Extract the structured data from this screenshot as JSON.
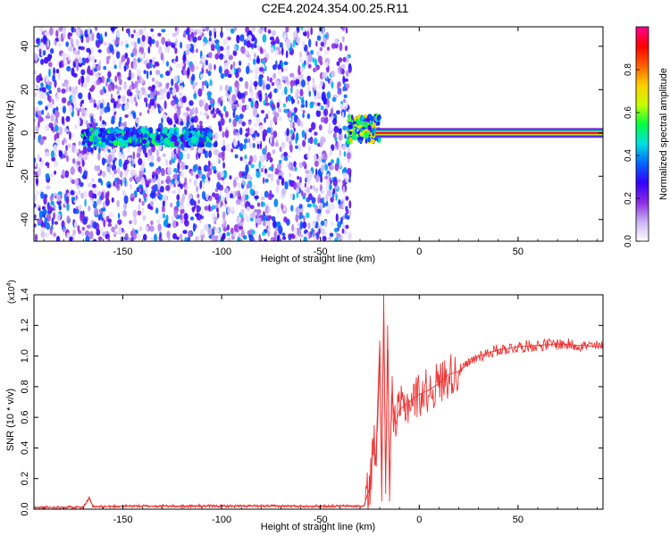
{
  "title": "C2E4.2024.354.00.25.R11",
  "chart_data": [
    {
      "type": "heatmap",
      "xlabel": "Height of straight line (km)",
      "ylabel": "Frequency (Hz)",
      "xlim": [
        -195,
        93
      ],
      "ylim": [
        -50,
        49
      ],
      "xticks": [
        "-150",
        "-100",
        "-50",
        "0",
        "50"
      ],
      "yticks": [
        "-40",
        "-20",
        "0",
        "20",
        "40"
      ],
      "noise_region_x": [
        -195,
        -35
      ],
      "strong_band": {
        "x_start": -22,
        "x_end": 93,
        "frequency": 0,
        "amplitude": 0.95
      },
      "weak_band": {
        "x_start": -170,
        "x_end": -105,
        "frequency": -2,
        "amplitude": 0.45
      },
      "colorbar": {
        "label": "Normalized spectral amplitude",
        "range": [
          0,
          1
        ],
        "ticks": [
          "0.0",
          "0.2",
          "0.4",
          "0.6",
          "0.8"
        ],
        "colors": [
          "#ffffff",
          "#c9b3f5",
          "#8a2be2",
          "#3300ff",
          "#0066ff",
          "#00e0e0",
          "#00ff40",
          "#c8ff00",
          "#ffd000",
          "#ff6000",
          "#ff0000",
          "#ff0090"
        ]
      },
      "grid": false
    },
    {
      "type": "line",
      "xlabel": "Height of straight line (km)",
      "ylabel": "SNR (10 * v/v)",
      "scale_label": "(x10",
      "scale_exp": "4",
      "scale_close": ")",
      "xlim": [
        -195,
        93
      ],
      "ylim": [
        0,
        1.4
      ],
      "xticks": [
        "-150",
        "-100",
        "-50",
        "0",
        "50"
      ],
      "yticks": [
        "0.0",
        "0.2",
        "0.4",
        "0.6",
        "0.8",
        "1.0",
        "1.2",
        "1.4"
      ],
      "series_color": "#ee3333",
      "series": [
        {
          "x": [
            -195,
            -170,
            -167,
            -165,
            -150,
            -100,
            -60,
            -40,
            -28,
            -25,
            -23,
            -22,
            -20,
            -19,
            -18,
            -17,
            -16,
            -15,
            -14,
            -12,
            -10,
            -5,
            0,
            5,
            10,
            15,
            20,
            25,
            30,
            35,
            40,
            50,
            60,
            70,
            80,
            93
          ],
          "y": [
            0.01,
            0.015,
            0.07,
            0.015,
            0.02,
            0.02,
            0.02,
            0.02,
            0.02,
            0.15,
            0.45,
            0.3,
            1.1,
            0.05,
            1.4,
            0.1,
            1.2,
            0.05,
            0.75,
            0.55,
            0.65,
            0.7,
            0.75,
            0.78,
            0.82,
            0.88,
            0.9,
            0.95,
            1.0,
            1.02,
            1.04,
            1.06,
            1.07,
            1.08,
            1.07,
            1.06
          ]
        }
      ],
      "grid": false
    }
  ]
}
